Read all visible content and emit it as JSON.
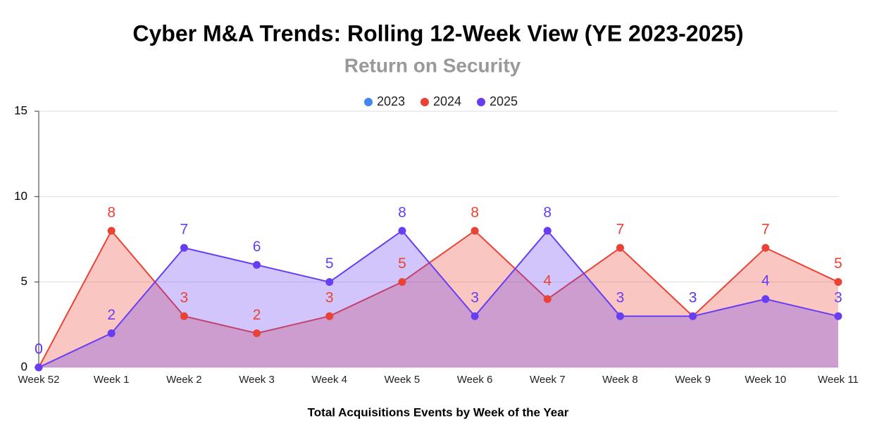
{
  "chart_data": {
    "type": "area",
    "title": "Cyber M&A Trends: Rolling 12-Week View (YE 2023-2025)",
    "subtitle": "Return on Security",
    "x_label": "Total Acquisitions Events by Week of the Year",
    "categories": [
      "Week 52",
      "Week 1",
      "Week 2",
      "Week 3",
      "Week 4",
      "Week 5",
      "Week 6",
      "Week 7",
      "Week 8",
      "Week 9",
      "Week 10",
      "Week 11"
    ],
    "series": [
      {
        "name": "2023",
        "color": "#4285f4",
        "values": [
          null,
          null,
          null,
          null,
          null,
          null,
          null,
          null,
          null,
          null,
          null,
          null
        ]
      },
      {
        "name": "2024",
        "color": "#ea4335",
        "values": [
          0,
          8,
          3,
          2,
          3,
          5,
          8,
          4,
          7,
          3,
          7,
          5
        ]
      },
      {
        "name": "2025",
        "color": "#673ef2",
        "values": [
          0,
          2,
          7,
          6,
          5,
          8,
          3,
          8,
          3,
          3,
          4,
          3
        ]
      }
    ],
    "ylim": [
      0,
      15
    ],
    "yticks": [
      0,
      5,
      10,
      15
    ],
    "grid": true,
    "legend": "top"
  }
}
